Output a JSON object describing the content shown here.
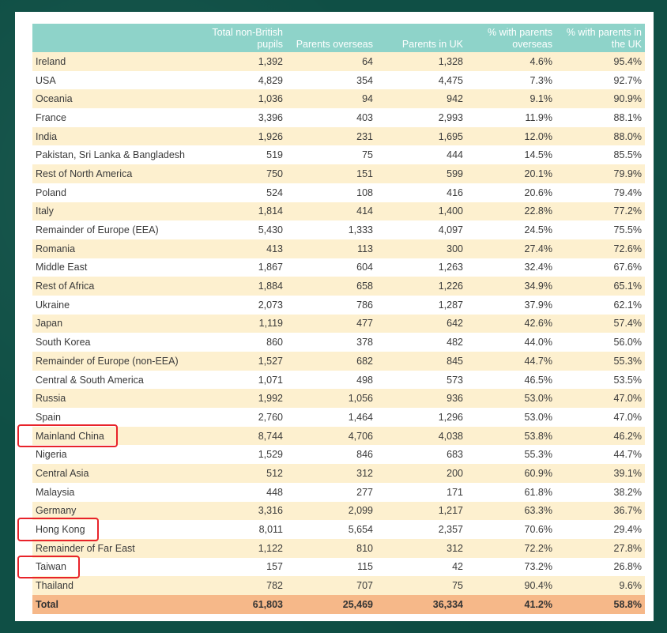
{
  "headers": [
    "",
    "Total non-British pupils",
    "Parents overseas",
    "Parents in UK",
    "% with parents overseas",
    "% with parents in the UK"
  ],
  "rows": [
    [
      "Ireland",
      "1,392",
      "64",
      "1,328",
      "4.6%",
      "95.4%"
    ],
    [
      "USA",
      "4,829",
      "354",
      "4,475",
      "7.3%",
      "92.7%"
    ],
    [
      "Oceania",
      "1,036",
      "94",
      "942",
      "9.1%",
      "90.9%"
    ],
    [
      "France",
      "3,396",
      "403",
      "2,993",
      "11.9%",
      "88.1%"
    ],
    [
      "India",
      "1,926",
      "231",
      "1,695",
      "12.0%",
      "88.0%"
    ],
    [
      "Pakistan, Sri Lanka & Bangladesh",
      "519",
      "75",
      "444",
      "14.5%",
      "85.5%"
    ],
    [
      "Rest of North America",
      "750",
      "151",
      "599",
      "20.1%",
      "79.9%"
    ],
    [
      "Poland",
      "524",
      "108",
      "416",
      "20.6%",
      "79.4%"
    ],
    [
      "Italy",
      "1,814",
      "414",
      "1,400",
      "22.8%",
      "77.2%"
    ],
    [
      "Remainder of Europe (EEA)",
      "5,430",
      "1,333",
      "4,097",
      "24.5%",
      "75.5%"
    ],
    [
      "Romania",
      "413",
      "113",
      "300",
      "27.4%",
      "72.6%"
    ],
    [
      "Middle East",
      "1,867",
      "604",
      "1,263",
      "32.4%",
      "67.6%"
    ],
    [
      "Rest of Africa",
      "1,884",
      "658",
      "1,226",
      "34.9%",
      "65.1%"
    ],
    [
      "Ukraine",
      "2,073",
      "786",
      "1,287",
      "37.9%",
      "62.1%"
    ],
    [
      "Japan",
      "1,119",
      "477",
      "642",
      "42.6%",
      "57.4%"
    ],
    [
      "South Korea",
      "860",
      "378",
      "482",
      "44.0%",
      "56.0%"
    ],
    [
      "Remainder of Europe (non-EEA)",
      "1,527",
      "682",
      "845",
      "44.7%",
      "55.3%"
    ],
    [
      "Central & South America",
      "1,071",
      "498",
      "573",
      "46.5%",
      "53.5%"
    ],
    [
      "Russia",
      "1,992",
      "1,056",
      "936",
      "53.0%",
      "47.0%"
    ],
    [
      "Spain",
      "2,760",
      "1,464",
      "1,296",
      "53.0%",
      "47.0%"
    ],
    [
      "Mainland China",
      "8,744",
      "4,706",
      "4,038",
      "53.8%",
      "46.2%"
    ],
    [
      "Nigeria",
      "1,529",
      "846",
      "683",
      "55.3%",
      "44.7%"
    ],
    [
      "Central Asia",
      "512",
      "312",
      "200",
      "60.9%",
      "39.1%"
    ],
    [
      "Malaysia",
      "448",
      "277",
      "171",
      "61.8%",
      "38.2%"
    ],
    [
      "Germany",
      "3,316",
      "2,099",
      "1,217",
      "63.3%",
      "36.7%"
    ],
    [
      "Hong Kong",
      "8,011",
      "5,654",
      "2,357",
      "70.6%",
      "29.4%"
    ],
    [
      "Remainder of Far East",
      "1,122",
      "810",
      "312",
      "72.2%",
      "27.8%"
    ],
    [
      "Taiwan",
      "157",
      "115",
      "42",
      "73.2%",
      "26.8%"
    ],
    [
      "Thailand",
      "782",
      "707",
      "75",
      "90.4%",
      "9.6%"
    ]
  ],
  "total": [
    "Total",
    "61,803",
    "25,469",
    "36,334",
    "41.2%",
    "58.8%"
  ],
  "highlighted": [
    "Mainland China",
    "Hong Kong",
    "Taiwan"
  ],
  "colors": {
    "header_bg": "#8ed3c9",
    "odd_row_bg": "#fdf0cf",
    "total_bg": "#f6b889",
    "highlight_border": "#e8232a",
    "frame_bg": "#0f4f45"
  }
}
